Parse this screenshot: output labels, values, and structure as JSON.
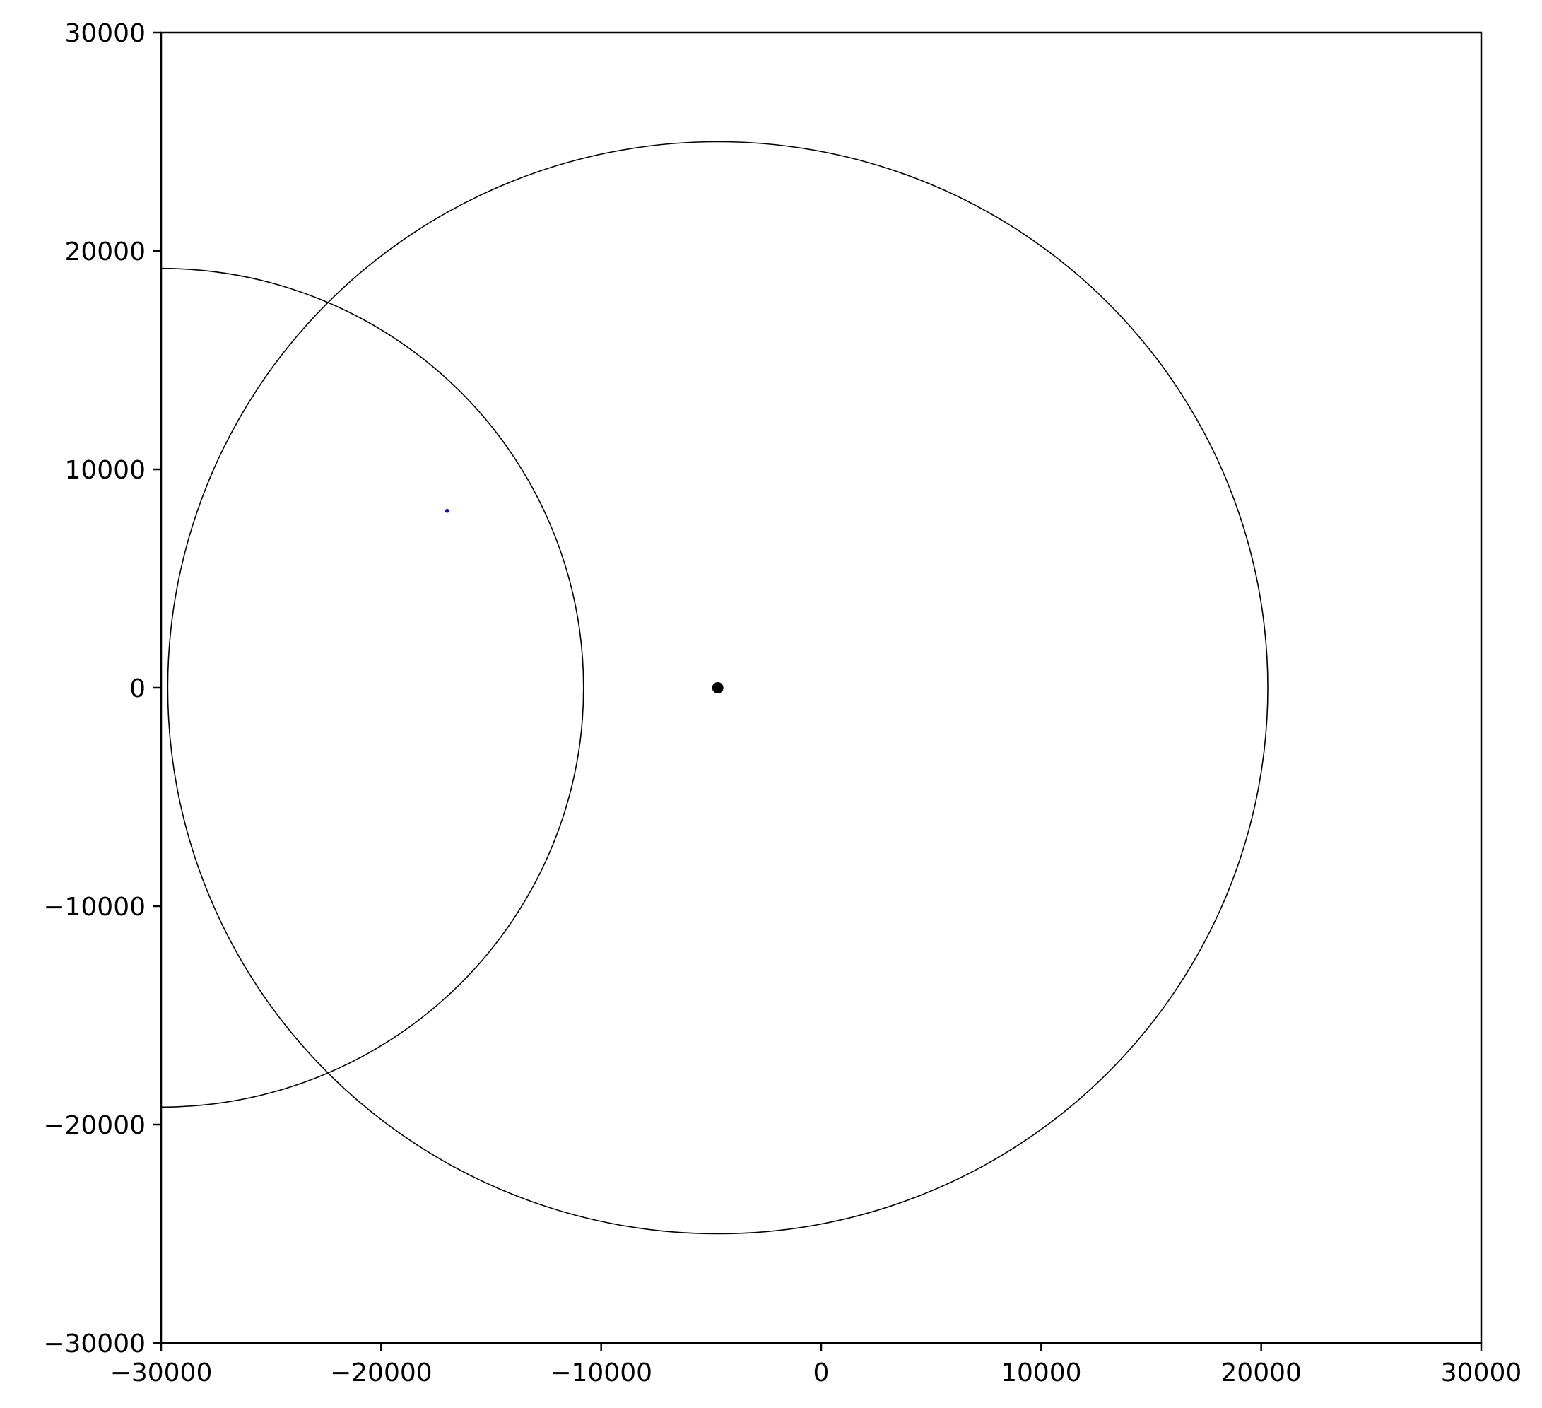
{
  "chart_data": {
    "type": "scatter",
    "title": "",
    "xlabel": "",
    "ylabel": "",
    "xlim": [
      -30000,
      30000
    ],
    "ylim": [
      -30000,
      30000
    ],
    "grid": false,
    "x_ticks": [
      -30000,
      -20000,
      -10000,
      0,
      10000,
      20000,
      30000
    ],
    "y_ticks": [
      -30000,
      -20000,
      -10000,
      0,
      10000,
      20000,
      30000
    ],
    "x_tick_labels": [
      "−30000",
      "−20000",
      "−10000",
      "0",
      "10000",
      "20000",
      "30000"
    ],
    "y_tick_labels": [
      "−30000",
      "−20000",
      "−10000",
      "0",
      "10000",
      "20000",
      "30000"
    ],
    "circles": [
      {
        "cx": -4700,
        "cy": 0,
        "r": 25000,
        "color": "#000000"
      },
      {
        "cx": -30000,
        "cy": 0,
        "r": 19200,
        "color": "#000000"
      }
    ],
    "points": [
      {
        "x": -4700,
        "y": 0,
        "color": "#000000",
        "size": "large"
      },
      {
        "x": -17000,
        "y": 8100,
        "color": "#0000ff",
        "size": "small"
      }
    ]
  }
}
